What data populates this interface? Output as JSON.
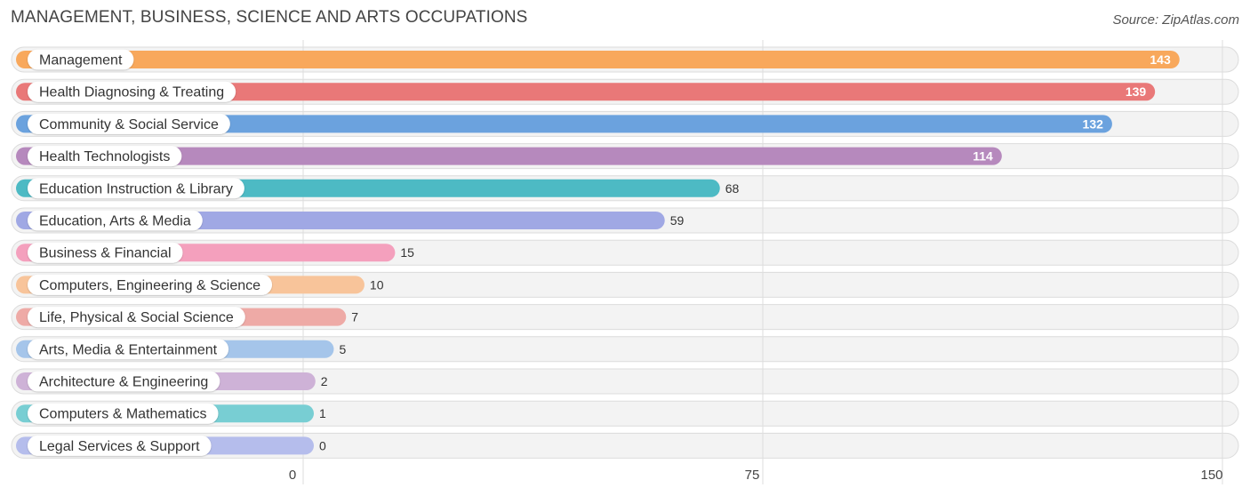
{
  "header": {
    "title": "MANAGEMENT, BUSINESS, SCIENCE AND ARTS OCCUPATIONS",
    "source": "Source: ZipAtlas.com"
  },
  "chart_data": {
    "type": "bar",
    "orientation": "horizontal",
    "title": "MANAGEMENT, BUSINESS, SCIENCE AND ARTS OCCUPATIONS",
    "xlabel": "",
    "ylabel": "",
    "xlim": [
      0,
      150
    ],
    "ticks": [
      "0",
      "75",
      "150"
    ],
    "tick_values": [
      0,
      75,
      150
    ],
    "categories": [
      "Management",
      "Health Diagnosing & Treating",
      "Community & Social Service",
      "Health Technologists",
      "Education Instruction & Library",
      "Education, Arts & Media",
      "Business & Financial",
      "Computers, Engineering & Science",
      "Life, Physical & Social Science",
      "Arts, Media & Entertainment",
      "Architecture & Engineering",
      "Computers & Mathematics",
      "Legal Services & Support"
    ],
    "values": [
      143,
      139,
      132,
      114,
      68,
      59,
      15,
      10,
      7,
      5,
      2,
      1,
      0
    ],
    "colors": [
      "#f8a85c",
      "#e97878",
      "#6ba2de",
      "#b689bd",
      "#4dbac4",
      "#a0a8e4",
      "#f4a0bd",
      "#f8c49a",
      "#eeaaa6",
      "#a5c5ea",
      "#ceb2d7",
      "#78ced3",
      "#b5bdec"
    ]
  }
}
